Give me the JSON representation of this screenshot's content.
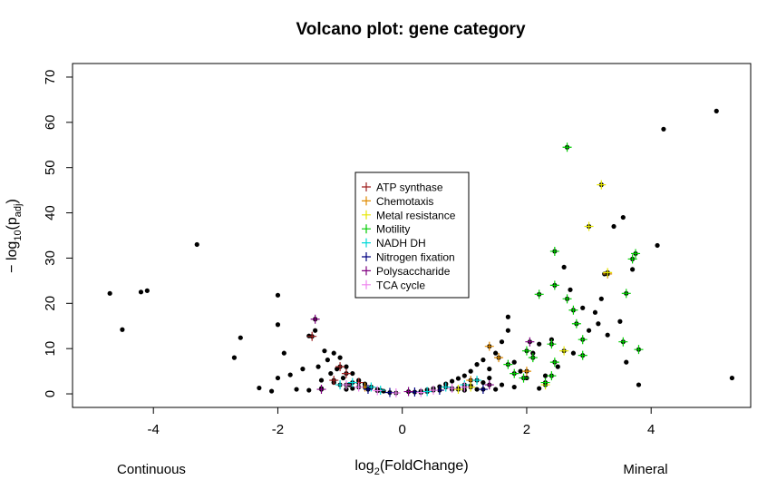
{
  "chart_data": {
    "type": "scatter",
    "title": "Volcano plot: gene category",
    "xlabel": "log2(FoldChange)",
    "ylabel": "-log10(padj)",
    "xlim": [
      -5.3,
      5.6
    ],
    "ylim": [
      -3,
      73
    ],
    "x_ticks": [
      -4,
      -2,
      0,
      2,
      4
    ],
    "y_ticks": [
      0,
      10,
      20,
      30,
      40,
      50,
      60,
      70
    ],
    "x_tick_labels": [
      "-4",
      "-2",
      "0",
      "2",
      "4"
    ],
    "y_tick_labels": [
      "0",
      "10",
      "20",
      "30",
      "40",
      "50",
      "60",
      "70"
    ],
    "group_labels": {
      "left": "Continuous",
      "right": "Mineral"
    },
    "legend_position": "center",
    "legend": [
      {
        "name": "ATP synthase",
        "color": "#9e1f1f"
      },
      {
        "name": "Chemotaxis",
        "color": "#e08a00"
      },
      {
        "name": "Metal resistance",
        "color": "#e6e600"
      },
      {
        "name": "Motility",
        "color": "#00cc00"
      },
      {
        "name": "NADH DH",
        "color": "#00d8d8"
      },
      {
        "name": "Nitrogen fixation",
        "color": "#000080"
      },
      {
        "name": "Polysaccharide",
        "color": "#800080"
      },
      {
        "name": "TCA cycle",
        "color": "#ee82ee"
      }
    ],
    "background_points": [
      [
        -4.7,
        22.2
      ],
      [
        -4.5,
        14.2
      ],
      [
        -4.2,
        22.5
      ],
      [
        -4.1,
        22.8
      ],
      [
        -3.3,
        33
      ],
      [
        -2.7,
        8
      ],
      [
        -2.6,
        12.4
      ],
      [
        -2.3,
        1.3
      ],
      [
        -2.1,
        0.6
      ],
      [
        -2.0,
        21.8
      ],
      [
        -2.0,
        15.3
      ],
      [
        -2.0,
        3.5
      ],
      [
        -1.9,
        9.0
      ],
      [
        -1.8,
        4.2
      ],
      [
        -1.7,
        1.0
      ],
      [
        -1.6,
        5.5
      ],
      [
        -1.5,
        12.8
      ],
      [
        -1.4,
        14.0
      ],
      [
        -1.35,
        6.0
      ],
      [
        -1.3,
        3.0
      ],
      [
        -1.25,
        9.5
      ],
      [
        -1.2,
        7.5
      ],
      [
        -1.15,
        4.5
      ],
      [
        -1.1,
        9.0
      ],
      [
        -1.05,
        5.5
      ],
      [
        -1.0,
        8.0
      ],
      [
        -0.95,
        3.5
      ],
      [
        -0.9,
        6.0
      ],
      [
        -0.85,
        2.0
      ],
      [
        -0.8,
        4.5
      ],
      [
        -0.7,
        3.0
      ],
      [
        -0.6,
        2.2
      ],
      [
        -0.5,
        1.5
      ],
      [
        -0.4,
        1.0
      ],
      [
        -0.3,
        0.6
      ],
      [
        0.3,
        0.6
      ],
      [
        0.4,
        0.9
      ],
      [
        0.5,
        1.2
      ],
      [
        0.6,
        1.6
      ],
      [
        0.7,
        2.2
      ],
      [
        0.8,
        2.8
      ],
      [
        0.9,
        3.4
      ],
      [
        1.0,
        4.0
      ],
      [
        1.1,
        5.0
      ],
      [
        1.2,
        6.5
      ],
      [
        1.3,
        7.5
      ],
      [
        1.4,
        5.5
      ],
      [
        1.5,
        9.0
      ],
      [
        1.6,
        11.5
      ],
      [
        1.7,
        14.0
      ],
      [
        1.7,
        17.0
      ],
      [
        1.8,
        7.0
      ],
      [
        1.9,
        5.0
      ],
      [
        2.0,
        3.5
      ],
      [
        2.1,
        9.0
      ],
      [
        2.2,
        11.0
      ],
      [
        2.3,
        4.0
      ],
      [
        2.4,
        12.0
      ],
      [
        2.5,
        6.0
      ],
      [
        2.6,
        28.0
      ],
      [
        2.7,
        23.0
      ],
      [
        2.75,
        9.0
      ],
      [
        2.9,
        19.0
      ],
      [
        3.0,
        14.0
      ],
      [
        3.1,
        18.0
      ],
      [
        3.15,
        15.5
      ],
      [
        3.2,
        21.0
      ],
      [
        3.25,
        26.5
      ],
      [
        3.3,
        13.0
      ],
      [
        3.4,
        37.0
      ],
      [
        3.5,
        16.0
      ],
      [
        3.55,
        39.0
      ],
      [
        3.6,
        7.0
      ],
      [
        3.7,
        27.5
      ],
      [
        3.8,
        2.0
      ],
      [
        4.1,
        32.8
      ],
      [
        4.2,
        58.5
      ],
      [
        5.05,
        62.5
      ],
      [
        5.3,
        3.5
      ],
      [
        0.9,
        1.2
      ],
      [
        1.1,
        1.8
      ],
      [
        1.3,
        2.5
      ],
      [
        1.5,
        1.0
      ],
      [
        1.8,
        1.5
      ],
      [
        2.2,
        1.2
      ],
      [
        -1.1,
        2.5
      ],
      [
        -1.3,
        1.2
      ],
      [
        -1.5,
        0.8
      ],
      [
        -0.9,
        1.0
      ],
      [
        1.0,
        0.8
      ],
      [
        1.2,
        1.0
      ],
      [
        1.4,
        3.5
      ],
      [
        1.6,
        2.0
      ],
      [
        0.8,
        1.0
      ],
      [
        -0.8,
        1.2
      ]
    ],
    "series": [
      {
        "name": "ATP synthase",
        "points": [
          [
            -1.45,
            12.7
          ],
          [
            -1.0,
            6.0
          ],
          [
            -0.9,
            4.5
          ],
          [
            -1.1,
            3.0
          ],
          [
            -0.7,
            2.5
          ]
        ]
      },
      {
        "name": "Chemotaxis",
        "points": [
          [
            1.4,
            10.5
          ],
          [
            1.55,
            8.0
          ],
          [
            2.0,
            5.0
          ],
          [
            1.1,
            3.0
          ],
          [
            -0.6,
            1.5
          ],
          [
            3.3,
            26.5
          ]
        ]
      },
      {
        "name": "Metal resistance",
        "points": [
          [
            3.2,
            46.2
          ],
          [
            3.0,
            37.0
          ],
          [
            1.1,
            1.5
          ],
          [
            0.9,
            1.0
          ],
          [
            2.3,
            2.0
          ],
          [
            2.6,
            9.5
          ],
          [
            3.3,
            26.8
          ]
        ]
      },
      {
        "name": "Motility",
        "points": [
          [
            2.65,
            54.5
          ],
          [
            2.45,
            31.5
          ],
          [
            3.75,
            31.0
          ],
          [
            3.7,
            29.8
          ],
          [
            2.2,
            22.0
          ],
          [
            2.45,
            24.0
          ],
          [
            2.65,
            21.0
          ],
          [
            3.6,
            22.2
          ],
          [
            2.8,
            15.5
          ],
          [
            2.9,
            12.0
          ],
          [
            3.55,
            11.5
          ],
          [
            3.8,
            9.8
          ],
          [
            2.4,
            11.0
          ],
          [
            2.0,
            9.5
          ],
          [
            2.1,
            8.0
          ],
          [
            2.45,
            7.0
          ],
          [
            2.9,
            8.5
          ],
          [
            2.4,
            4.0
          ],
          [
            2.3,
            2.5
          ],
          [
            1.7,
            6.5
          ],
          [
            1.95,
            3.5
          ],
          [
            2.75,
            18.5
          ],
          [
            1.8,
            4.5
          ]
        ]
      },
      {
        "name": "NADH DH",
        "points": [
          [
            -0.5,
            1.5
          ],
          [
            -0.35,
            0.8
          ],
          [
            0.4,
            0.5
          ],
          [
            0.7,
            1.5
          ],
          [
            1.0,
            2.0
          ],
          [
            -0.8,
            2.5
          ],
          [
            1.2,
            3.0
          ],
          [
            -1.0,
            2.0
          ]
        ]
      },
      {
        "name": "Nitrogen fixation",
        "points": [
          [
            -0.2,
            0.3
          ],
          [
            0.2,
            0.4
          ],
          [
            0.6,
            0.8
          ],
          [
            -0.55,
            1.0
          ],
          [
            1.3,
            1.0
          ]
        ]
      },
      {
        "name": "Polysaccharide",
        "points": [
          [
            -1.4,
            16.5
          ],
          [
            2.05,
            11.5
          ],
          [
            -1.3,
            1.0
          ],
          [
            1.4,
            2.0
          ],
          [
            0.1,
            0.5
          ]
        ]
      },
      {
        "name": "TCA cycle",
        "points": [
          [
            -0.1,
            0.2
          ],
          [
            0.3,
            0.3
          ],
          [
            0.5,
            0.8
          ],
          [
            -0.4,
            0.7
          ],
          [
            0.8,
            1.2
          ],
          [
            -0.7,
            1.5
          ],
          [
            1.0,
            1.5
          ],
          [
            -0.9,
            2.0
          ]
        ]
      }
    ]
  }
}
